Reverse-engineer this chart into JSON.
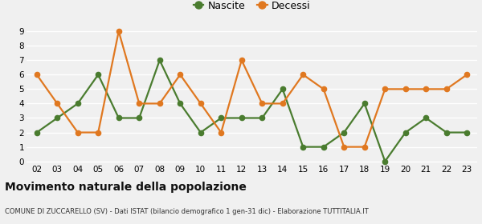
{
  "years": [
    "02",
    "03",
    "04",
    "05",
    "06",
    "07",
    "08",
    "09",
    "10",
    "11",
    "12",
    "13",
    "14",
    "15",
    "16",
    "17",
    "18",
    "19",
    "20",
    "21",
    "22",
    "23"
  ],
  "nascite": [
    2,
    3,
    4,
    6,
    3,
    3,
    7,
    4,
    2,
    3,
    3,
    3,
    5,
    1,
    1,
    2,
    4,
    0,
    2,
    3,
    2,
    2
  ],
  "decessi": [
    6,
    4,
    2,
    2,
    9,
    4,
    4,
    6,
    4,
    2,
    7,
    4,
    4,
    6,
    5,
    1,
    1,
    5,
    5,
    5,
    5,
    6
  ],
  "nascite_color": "#4a7c2f",
  "decessi_color": "#e07820",
  "title": "Movimento naturale della popolazione",
  "subtitle": "COMUNE DI ZUCCARELLO (SV) - Dati ISTAT (bilancio demografico 1 gen-31 dic) - Elaborazione TUTTITALIA.IT",
  "legend_nascite": "Nascite",
  "legend_decessi": "Decessi",
  "ylim_min": 0,
  "ylim_max": 9,
  "yticks": [
    0,
    1,
    2,
    3,
    4,
    5,
    6,
    7,
    8,
    9
  ],
  "bg_color": "#f0f0f0",
  "grid_color": "#ffffff",
  "marker": "o",
  "markersize": 4.5,
  "linewidth": 1.6,
  "title_fontsize": 10,
  "subtitle_fontsize": 6.0,
  "tick_fontsize": 7.5,
  "legend_fontsize": 9
}
